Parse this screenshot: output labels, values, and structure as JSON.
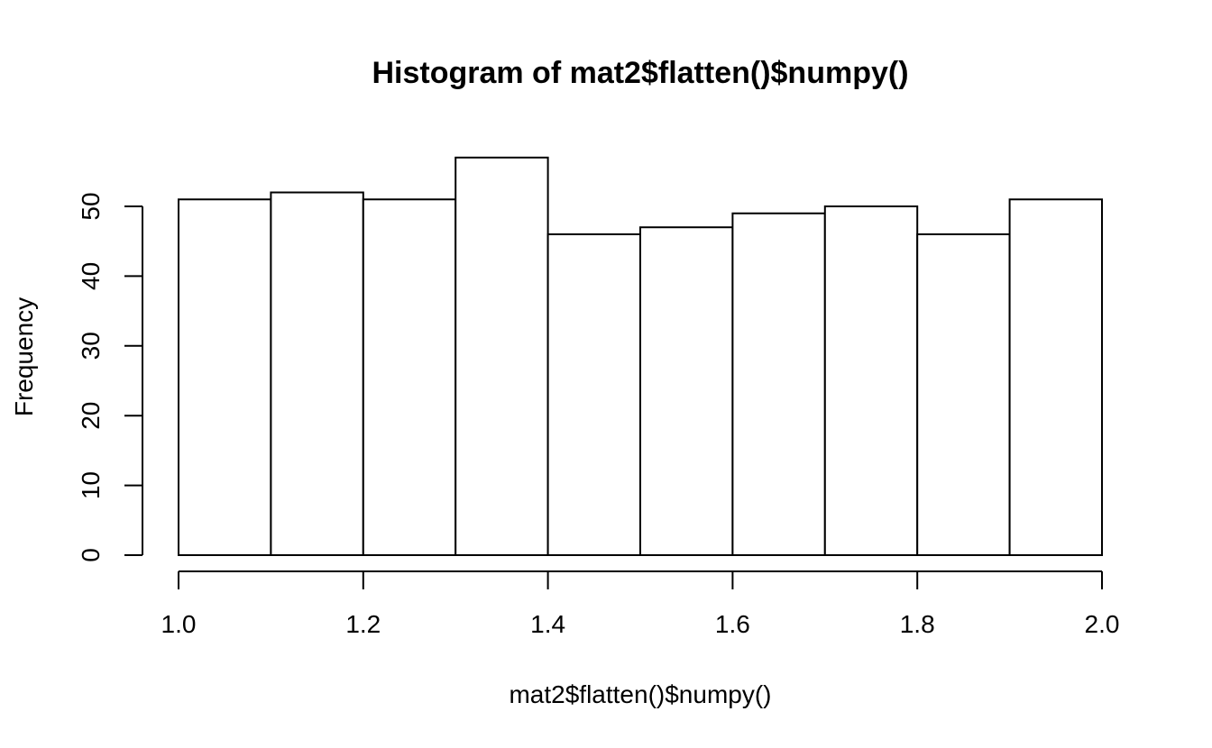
{
  "chart_data": {
    "type": "bar",
    "title": "Histogram of mat2$flatten()$numpy()",
    "xlabel": "mat2$flatten()$numpy()",
    "ylabel": "Frequency",
    "bins": [
      {
        "x0": 1.0,
        "x1": 1.1,
        "count": 51
      },
      {
        "x0": 1.1,
        "x1": 1.2,
        "count": 52
      },
      {
        "x0": 1.2,
        "x1": 1.3,
        "count": 51
      },
      {
        "x0": 1.3,
        "x1": 1.4,
        "count": 57
      },
      {
        "x0": 1.4,
        "x1": 1.5,
        "count": 46
      },
      {
        "x0": 1.5,
        "x1": 1.6,
        "count": 47
      },
      {
        "x0": 1.6,
        "x1": 1.7,
        "count": 49
      },
      {
        "x0": 1.7,
        "x1": 1.8,
        "count": 50
      },
      {
        "x0": 1.8,
        "x1": 1.9,
        "count": 46
      },
      {
        "x0": 1.9,
        "x1": 2.0,
        "count": 51
      }
    ],
    "xlim": [
      1.0,
      2.0
    ],
    "ylim": [
      0,
      57
    ],
    "x_ticks": [
      1.0,
      1.2,
      1.4,
      1.6,
      1.8,
      2.0
    ],
    "x_tick_labels": [
      "1.0",
      "1.2",
      "1.4",
      "1.6",
      "1.8",
      "2.0"
    ],
    "y_ticks": [
      0,
      10,
      20,
      30,
      40,
      50
    ],
    "y_tick_labels": [
      "0",
      "10",
      "20",
      "30",
      "40",
      "50"
    ],
    "grid": false,
    "legend": "none",
    "colors": {
      "bar_fill": "#ffffff",
      "bar_stroke": "#000000"
    }
  }
}
